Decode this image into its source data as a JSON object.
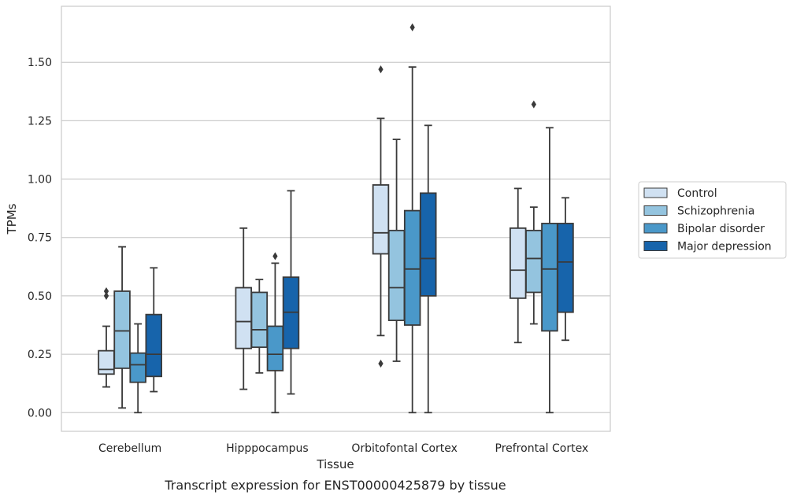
{
  "chart_data": {
    "type": "box",
    "xlabel": "Tissue",
    "ylabel": "TPMs",
    "caption": "Transcript expression for ENST00000425879 by tissue",
    "ylim": [
      -0.08,
      1.74
    ],
    "yticks": [
      0.0,
      0.25,
      0.5,
      0.75,
      1.0,
      1.25,
      1.5
    ],
    "ytick_labels": [
      "0.00",
      "0.25",
      "0.50",
      "0.75",
      "1.00",
      "1.25",
      "1.50"
    ],
    "grid": true,
    "legend_position": "right",
    "categories": [
      "Cerebellum",
      "Hipppocampus",
      "Orbitofontal Cortex",
      "Prefrontal Cortex"
    ],
    "series": [
      {
        "name": "Control",
        "color": "#d0e1f2",
        "boxes": [
          {
            "whislo": 0.11,
            "q1": 0.165,
            "med": 0.185,
            "q3": 0.265,
            "whishi": 0.37,
            "fliers": [
              0.5,
              0.52
            ]
          },
          {
            "whislo": 0.1,
            "q1": 0.275,
            "med": 0.39,
            "q3": 0.535,
            "whishi": 0.79,
            "fliers": []
          },
          {
            "whislo": 0.33,
            "q1": 0.68,
            "med": 0.77,
            "q3": 0.975,
            "whishi": 1.26,
            "fliers": [
              0.21,
              1.47
            ]
          },
          {
            "whislo": 0.3,
            "q1": 0.49,
            "med": 0.61,
            "q3": 0.79,
            "whishi": 0.96,
            "fliers": []
          }
        ]
      },
      {
        "name": "Schizophrenia",
        "color": "#94c4df",
        "boxes": [
          {
            "whislo": 0.02,
            "q1": 0.19,
            "med": 0.35,
            "q3": 0.52,
            "whishi": 0.71,
            "fliers": []
          },
          {
            "whislo": 0.17,
            "q1": 0.28,
            "med": 0.355,
            "q3": 0.515,
            "whishi": 0.57,
            "fliers": []
          },
          {
            "whislo": 0.22,
            "q1": 0.395,
            "med": 0.535,
            "q3": 0.78,
            "whishi": 1.17,
            "fliers": []
          },
          {
            "whislo": 0.38,
            "q1": 0.515,
            "med": 0.66,
            "q3": 0.78,
            "whishi": 0.88,
            "fliers": [
              1.32
            ]
          }
        ]
      },
      {
        "name": "Bipolar disorder",
        "color": "#4a98c9",
        "boxes": [
          {
            "whislo": 0.0,
            "q1": 0.13,
            "med": 0.205,
            "q3": 0.255,
            "whishi": 0.38,
            "fliers": []
          },
          {
            "whislo": 0.0,
            "q1": 0.18,
            "med": 0.25,
            "q3": 0.37,
            "whishi": 0.64,
            "fliers": [
              0.67
            ]
          },
          {
            "whislo": 0.0,
            "q1": 0.375,
            "med": 0.615,
            "q3": 0.865,
            "whishi": 1.48,
            "fliers": [
              1.65
            ]
          },
          {
            "whislo": 0.0,
            "q1": 0.35,
            "med": 0.615,
            "q3": 0.81,
            "whishi": 1.22,
            "fliers": []
          }
        ]
      },
      {
        "name": "Major depression",
        "color": "#1764ab",
        "boxes": [
          {
            "whislo": 0.09,
            "q1": 0.155,
            "med": 0.25,
            "q3": 0.42,
            "whishi": 0.62,
            "fliers": []
          },
          {
            "whislo": 0.08,
            "q1": 0.275,
            "med": 0.43,
            "q3": 0.58,
            "whishi": 0.95,
            "fliers": []
          },
          {
            "whislo": 0.0,
            "q1": 0.5,
            "med": 0.66,
            "q3": 0.94,
            "whishi": 1.23,
            "fliers": []
          },
          {
            "whislo": 0.31,
            "q1": 0.43,
            "med": 0.645,
            "q3": 0.81,
            "whishi": 0.92,
            "fliers": []
          }
        ]
      }
    ]
  }
}
